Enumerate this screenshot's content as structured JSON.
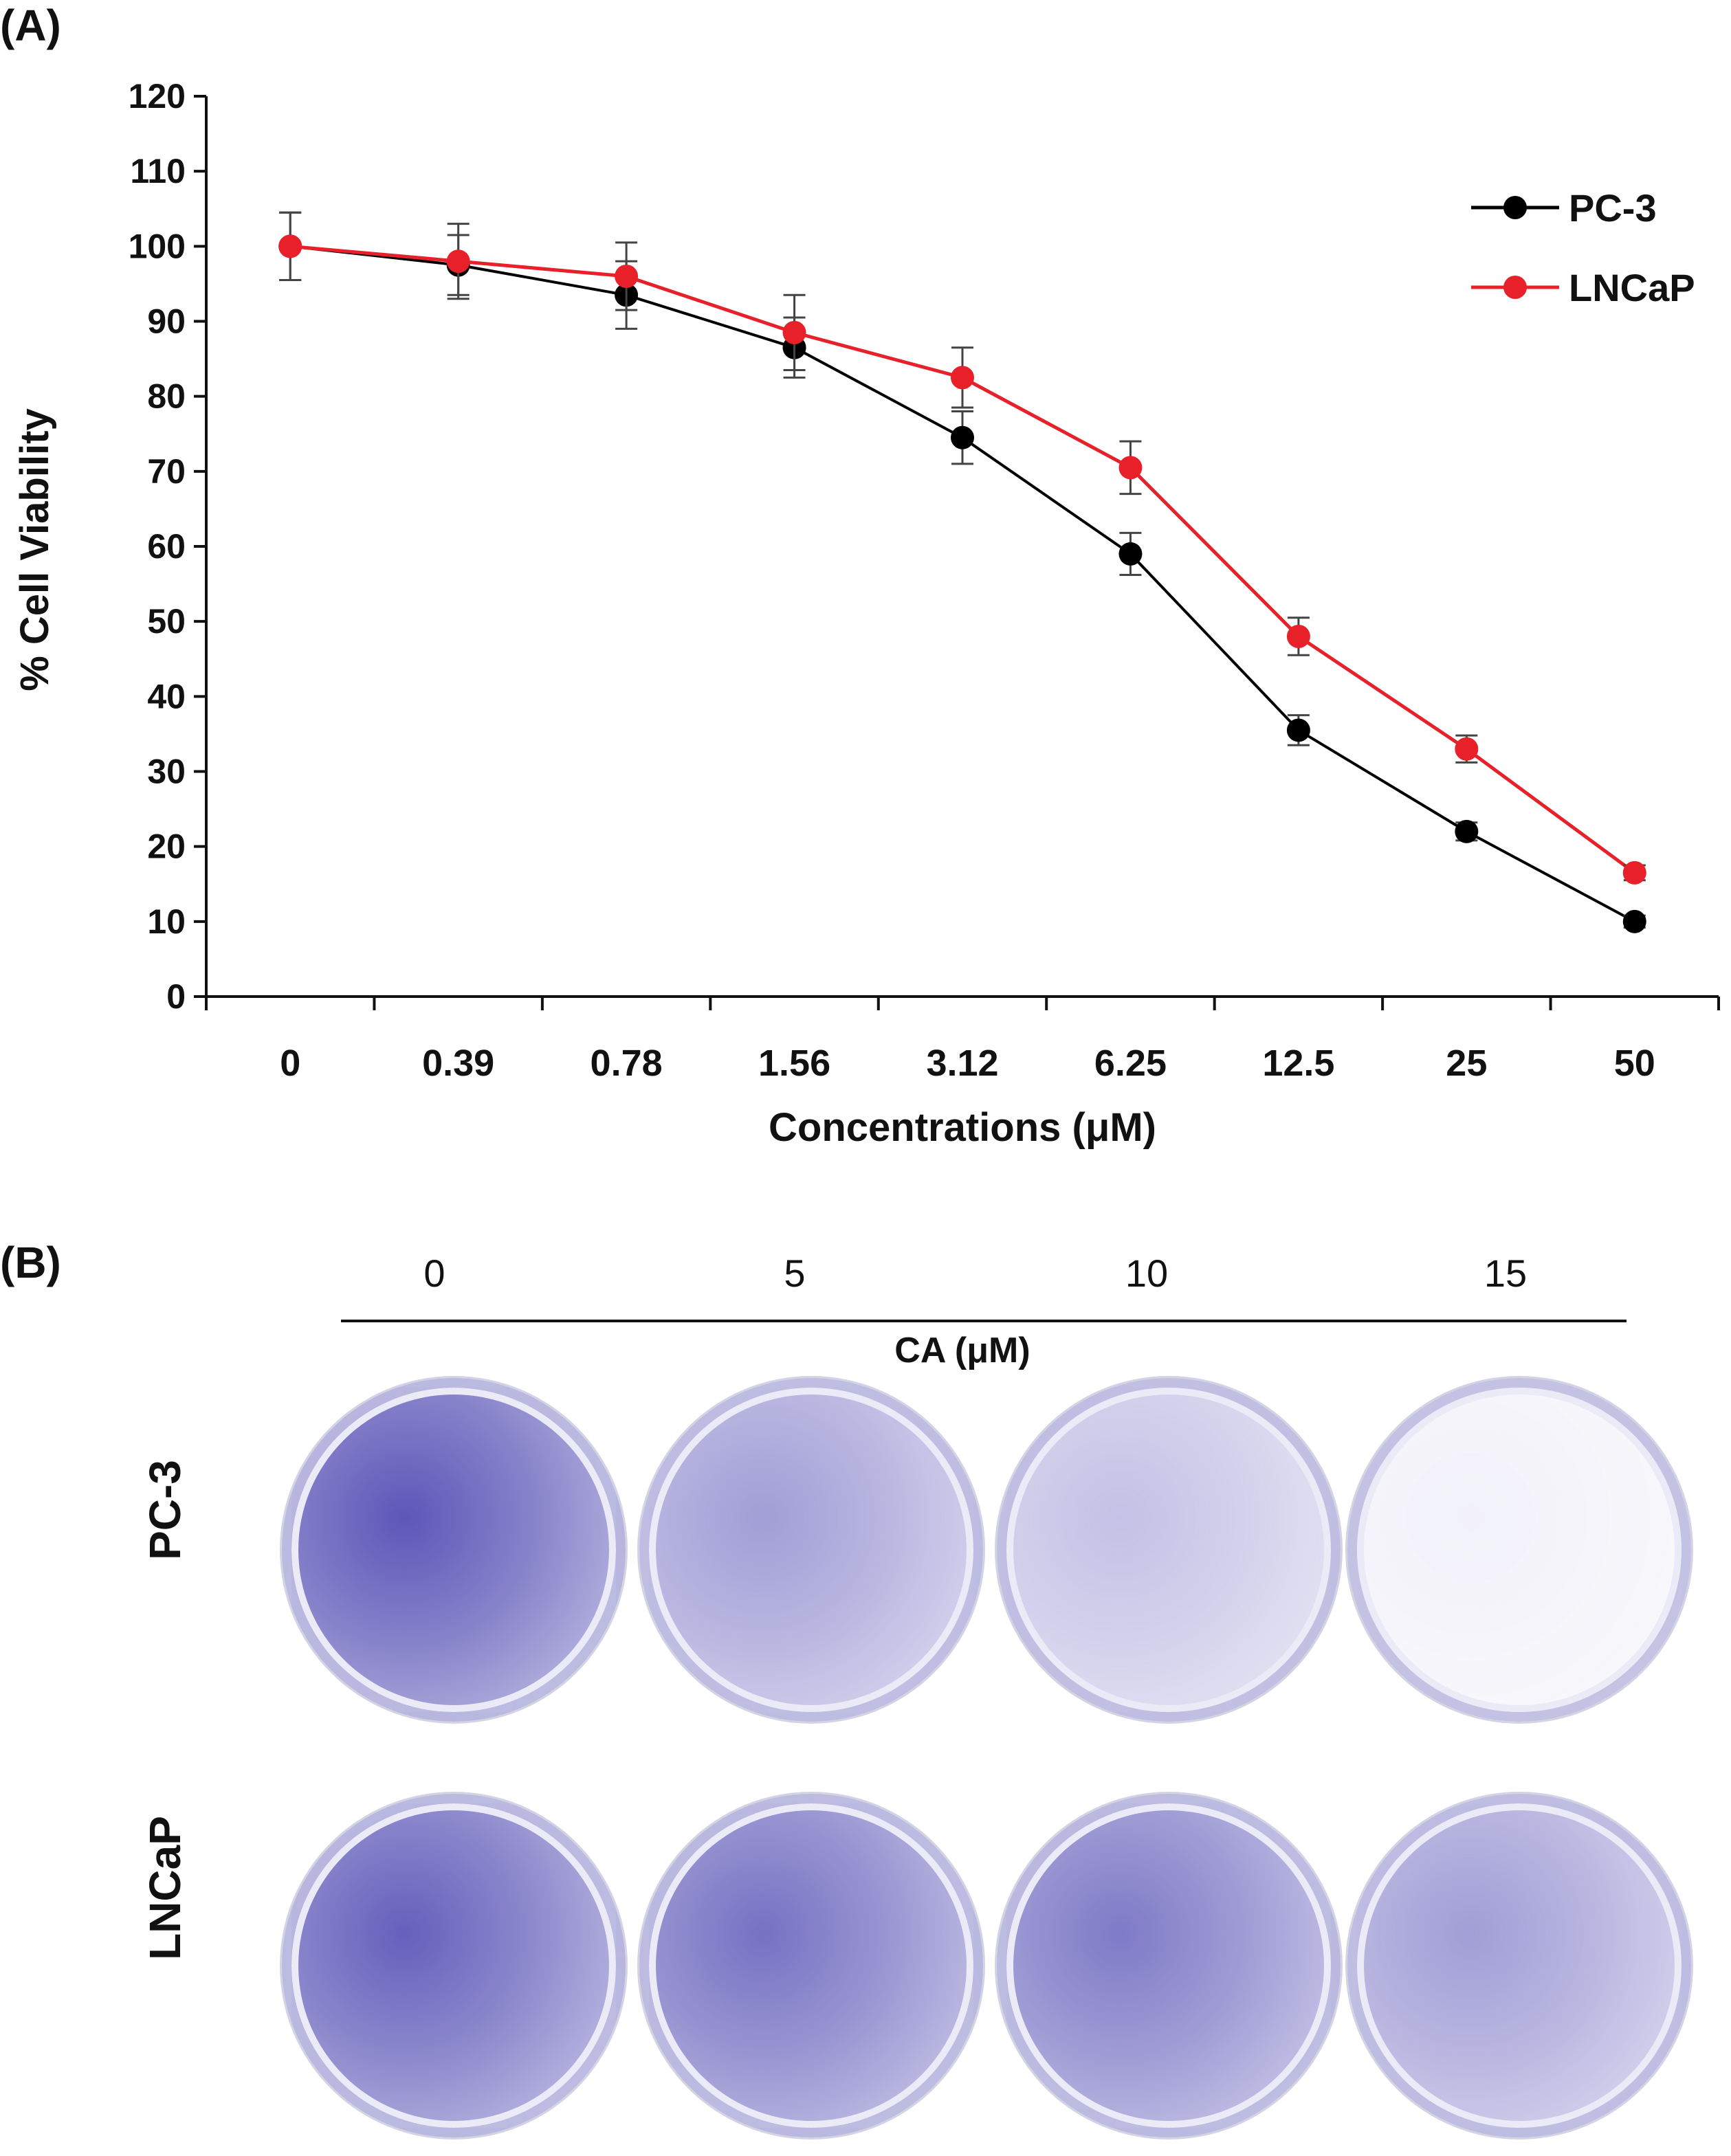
{
  "panel_a_label": "(A)",
  "panel_b_label": "(B)",
  "chart_data": {
    "type": "line",
    "title": "",
    "xlabel": "Concentrations (μM)",
    "ylabel": "% Cell Viability",
    "categories": [
      "0",
      "0.39",
      "0.78",
      "1.56",
      "3.12",
      "6.25",
      "12.5",
      "25",
      "50"
    ],
    "ylim": [
      0,
      120
    ],
    "yticks": [
      0,
      10,
      20,
      30,
      40,
      50,
      60,
      70,
      80,
      90,
      100,
      110,
      120
    ],
    "legend_position": "top-right",
    "series": [
      {
        "name": "PC-3",
        "color": "#000000",
        "values": [
          100,
          97.5,
          93.5,
          86.5,
          74.5,
          59,
          35.5,
          22,
          10
        ],
        "errors": [
          4.5,
          4,
          4.5,
          4,
          3.5,
          2.8,
          2,
          1.2,
          0.8
        ]
      },
      {
        "name": "LNCaP",
        "color": "#e8202a",
        "values": [
          100,
          98,
          96,
          88.5,
          82.5,
          70.5,
          48,
          33,
          16.5
        ],
        "errors": [
          4.5,
          5,
          4.5,
          5,
          4,
          3.5,
          2.5,
          1.8,
          1
        ]
      }
    ]
  },
  "panel_b": {
    "unit_label": "CA (μM)",
    "concentrations": [
      "0",
      "5",
      "10",
      "15"
    ],
    "rows": [
      {
        "label": "PC-3",
        "stain_density": [
          0.95,
          0.55,
          0.35,
          0.08
        ]
      },
      {
        "label": "LNCaP",
        "stain_density": [
          0.9,
          0.8,
          0.75,
          0.55
        ]
      }
    ],
    "stain_color": "#4b45b0"
  }
}
